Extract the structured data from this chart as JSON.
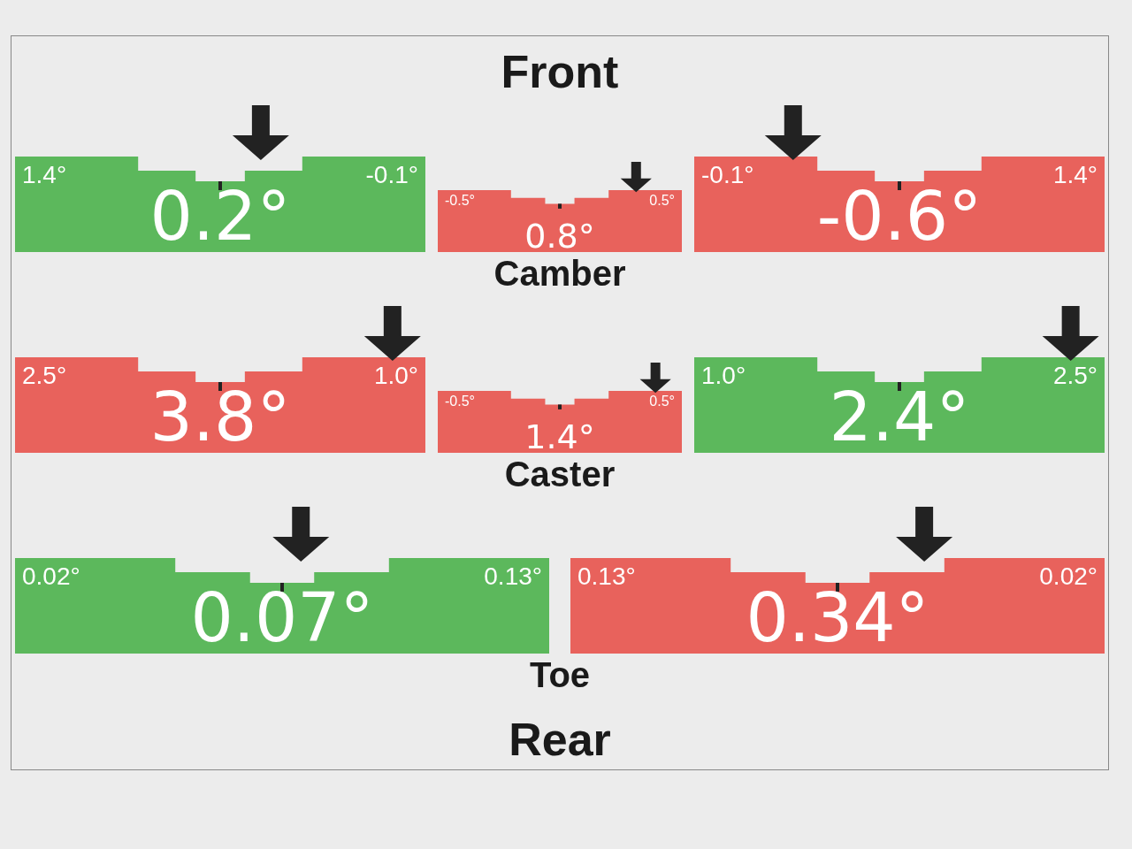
{
  "chart_data": [
    {
      "type": "other",
      "title": "Front"
    },
    {
      "type": "other",
      "annotations": [
        "1.4°",
        "-0.1°"
      ],
      "values": [
        0.2
      ],
      "value_labels": [
        "0.2°"
      ],
      "colors": [
        "#5cb85c"
      ]
    },
    {
      "type": "other",
      "annotations": [
        "-0.5°",
        "0.5°"
      ],
      "values": [
        0.8
      ],
      "value_labels": [
        "0.8°"
      ],
      "colors": [
        "#e8625c"
      ]
    },
    {
      "type": "other",
      "annotations": [
        "-0.1°",
        "1.4°"
      ],
      "values": [
        -0.6
      ],
      "value_labels": [
        "-0.6°"
      ],
      "colors": [
        "#e8625c"
      ],
      "xlabel": "Camber"
    },
    {
      "type": "other",
      "annotations": [
        "2.5°",
        "1.0°"
      ],
      "values": [
        3.8
      ],
      "value_labels": [
        "3.8°"
      ],
      "colors": [
        "#e8625c"
      ]
    },
    {
      "type": "other",
      "annotations": [
        "-0.5°",
        "0.5°"
      ],
      "values": [
        1.4
      ],
      "value_labels": [
        "1.4°"
      ],
      "colors": [
        "#e8625c"
      ]
    },
    {
      "type": "other",
      "annotations": [
        "1.0°",
        "2.5°"
      ],
      "values": [
        2.4
      ],
      "value_labels": [
        "2.4°"
      ],
      "colors": [
        "#5cb85c"
      ],
      "xlabel": "Caster"
    },
    {
      "type": "other",
      "annotations": [
        "0.02°",
        "0.13°"
      ],
      "values": [
        0.07
      ],
      "value_labels": [
        "0.07°"
      ],
      "colors": [
        "#5cb85c"
      ]
    },
    {
      "type": "other",
      "annotations": [
        "0.13°",
        "0.02°"
      ],
      "values": [
        0.34
      ],
      "value_labels": [
        "0.34°"
      ],
      "colors": [
        "#e8625c"
      ],
      "xlabel": "Toe"
    },
    {
      "type": "other",
      "title": "Rear"
    }
  ]
}
